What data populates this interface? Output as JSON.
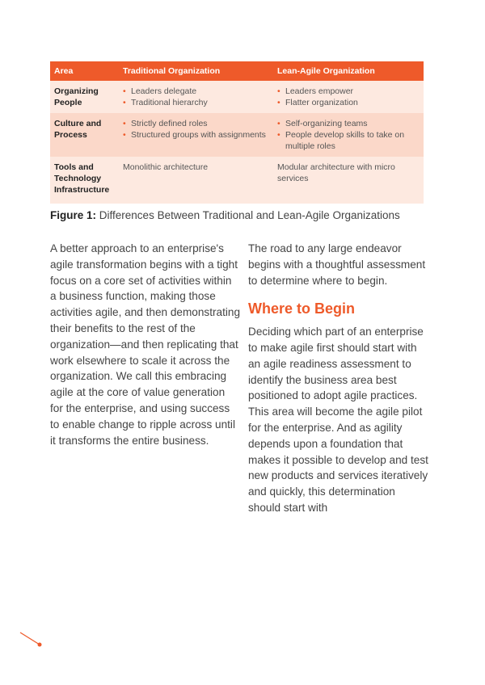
{
  "table": {
    "headers": [
      "Area",
      "Traditional Organization",
      "Lean-Agile Organization"
    ],
    "rows": [
      {
        "area": "Organizing People",
        "traditional": [
          "Leaders delegate",
          "Traditional hierarchy"
        ],
        "lean": [
          "Leaders empower",
          "Flatter organization"
        ]
      },
      {
        "area": "Culture and Process",
        "traditional": [
          "Strictly defined roles",
          "Structured groups with assignments"
        ],
        "lean": [
          "Self-organizing teams",
          "People develop skills to take on multiple roles"
        ]
      },
      {
        "area": "Tools and Technology Infrastructure",
        "traditional_text": "Monolithic architecture",
        "lean_text": "Modular architecture with micro services"
      }
    ]
  },
  "caption": {
    "label": "Figure 1:",
    "text": "Differences Between Traditional and Lean-Agile Organizations"
  },
  "left_paragraph": "A better approach to an enterprise's agile transformation begins with a tight focus on a core set of activities within a business function, making those activities agile, and then demonstrating their benefits to the rest of the organization—and then replicating that work elsewhere to scale it across the organization. We call this embracing agile at the core of value generation for the enterprise, and using success to enable change to ripple across until it transforms the entire business.",
  "right_intro": "The road to any large endeavor begins with a thoughtful assessment to determine where to begin.",
  "heading": "Where to Begin",
  "right_body": "Deciding which part of an enterprise to make agile first should start with an agile readiness assessment to identify the business area best positioned to adopt agile practices. This area will become the agile pilot for the enterprise. And as agility depends upon a foundation that makes it possible to develop and test new products and services iteratively and quickly, this determination should start with",
  "colors": {
    "accent": "#ee5a2a",
    "row_light": "#fde9e0",
    "row_dark": "#fbd8c9"
  }
}
